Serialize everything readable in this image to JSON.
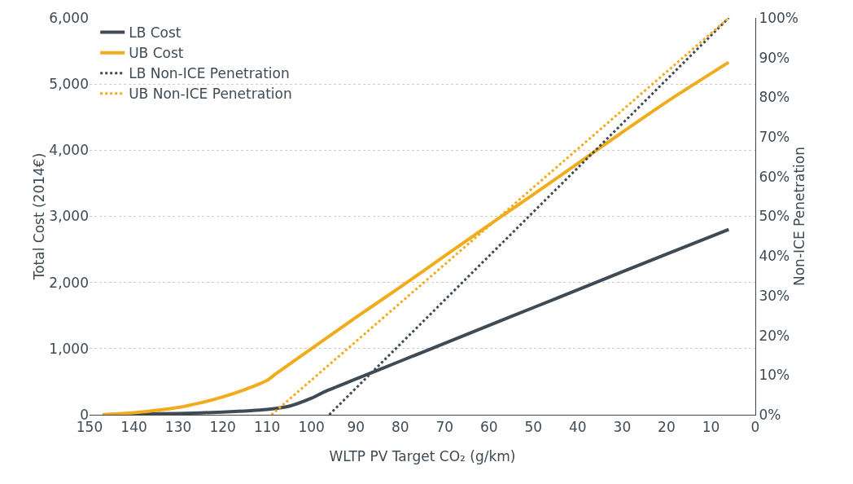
{
  "chart_data": {
    "type": "line",
    "xlabel": "WLTP PV Target CO₂ (g/km)",
    "ylabel": "Total Cost (2014€)",
    "y2label": "Non-ICE Penetration",
    "xlim": [
      150,
      0
    ],
    "xticks": [
      150,
      140,
      130,
      120,
      110,
      100,
      90,
      80,
      70,
      60,
      50,
      40,
      30,
      20,
      10,
      0
    ],
    "ylim": [
      0,
      6000
    ],
    "yticks": [
      {
        "value": 0,
        "label": "0"
      },
      {
        "value": 1000,
        "label": "1,000"
      },
      {
        "value": 2000,
        "label": "2,000"
      },
      {
        "value": 3000,
        "label": "3,000"
      },
      {
        "value": 4000,
        "label": "4,000"
      },
      {
        "value": 5000,
        "label": "5,000"
      },
      {
        "value": 6000,
        "label": "6,000"
      }
    ],
    "y2lim": [
      0,
      100
    ],
    "y2ticks": [
      {
        "value": 0,
        "label": "0%"
      },
      {
        "value": 10,
        "label": "10%"
      },
      {
        "value": 20,
        "label": "20%"
      },
      {
        "value": 30,
        "label": "30%"
      },
      {
        "value": 40,
        "label": "40%"
      },
      {
        "value": 50,
        "label": "50%"
      },
      {
        "value": 60,
        "label": "60%"
      },
      {
        "value": 70,
        "label": "70%"
      },
      {
        "value": 80,
        "label": "80%"
      },
      {
        "value": 90,
        "label": "90%"
      },
      {
        "value": 100,
        "label": "100%"
      }
    ],
    "grid": "y",
    "legend": "top left",
    "marker": "none",
    "series": [
      {
        "name": "LB Cost",
        "color": "#3e4a54",
        "line_style": "solid",
        "x": [
          147,
          140,
          130,
          120,
          110,
          105,
          100,
          97,
          90,
          80,
          70,
          60,
          50,
          40,
          30,
          20,
          6
        ],
        "values": [
          0,
          10,
          20,
          40,
          80,
          130,
          250,
          350,
          540,
          810,
          1080,
          1350,
          1620,
          1890,
          2160,
          2430,
          2800
        ]
      },
      {
        "name": "UB Cost",
        "color": "#f0ac1c",
        "line_style": "solid",
        "x": [
          147,
          140,
          130,
          125,
          120,
          115,
          110,
          108,
          100,
          90,
          80,
          70,
          60,
          50,
          40,
          30,
          20,
          6
        ],
        "values": [
          0,
          30,
          110,
          180,
          270,
          380,
          520,
          620,
          1000,
          1470,
          1930,
          2400,
          2870,
          3330,
          3800,
          4270,
          4730,
          5330
        ]
      },
      {
        "name": "LB Non-ICE Penetration",
        "color": "#3e4a54",
        "line_style": "dotted",
        "axis": "y2",
        "x": [
          96,
          6
        ],
        "values": [
          0,
          100
        ]
      },
      {
        "name": "UB Non-ICE Penetration",
        "color": "#f0ac1c",
        "line_style": "dotted",
        "axis": "y2",
        "x": [
          109,
          6
        ],
        "values": [
          0,
          100
        ]
      }
    ]
  }
}
